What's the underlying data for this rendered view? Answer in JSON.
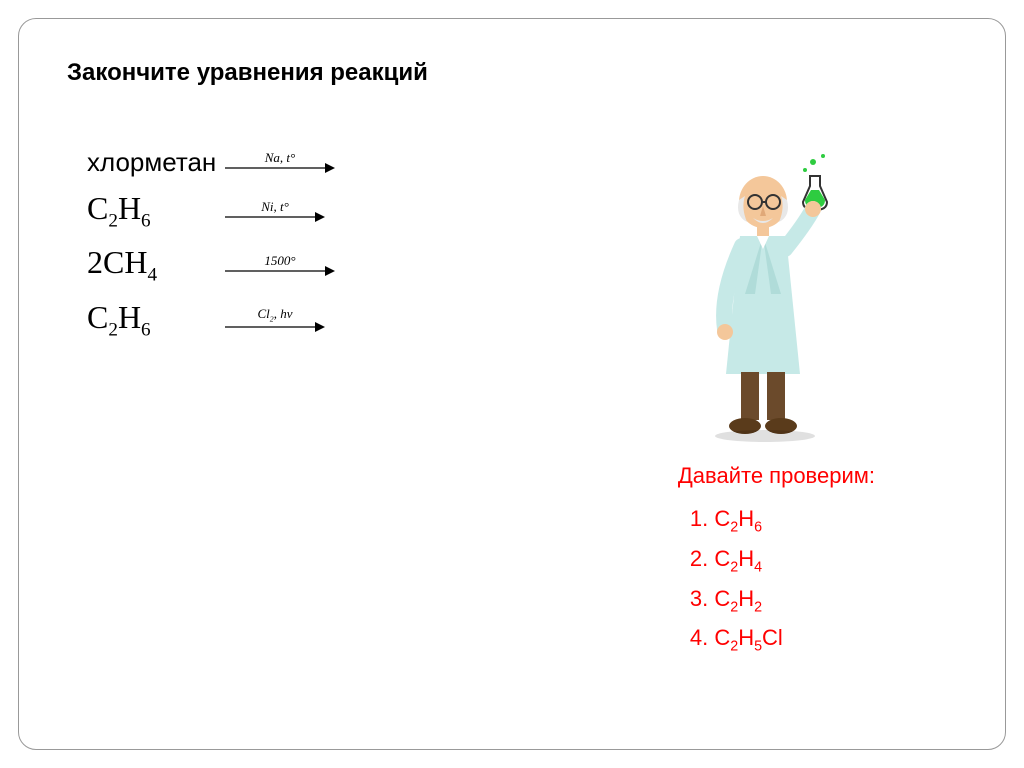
{
  "title": "Закончите уравнения реакций",
  "equations": [
    {
      "left_html": "хлорметан",
      "left_class": "chloro",
      "arrow_label_html": "Na, t°",
      "arrow_width": 110
    },
    {
      "left_html": "C<sub>2</sub>H<sub>6</sub>",
      "left_class": "",
      "arrow_label_html": "Ni, t°",
      "arrow_width": 100
    },
    {
      "left_html": "2CH<sub>4</sub>",
      "left_class": "",
      "arrow_label_html": "1500°",
      "arrow_width": 110
    },
    {
      "left_html": "C<sub>2</sub>H<sub>6</sub>",
      "left_class": "",
      "arrow_label_html": "Cl<sub>2</sub>, hν",
      "arrow_width": 100
    }
  ],
  "answers_prompt": "Давайте проверим:",
  "answers": [
    "C<sub>2</sub>H<sub>6</sub>",
    "C<sub>2</sub>H<sub>4</sub>",
    "C<sub>2</sub>H<sub>2</sub>",
    "C<sub>2</sub>H<sub>5</sub>Cl"
  ],
  "colors": {
    "text": "#000000",
    "answer": "#ff0000",
    "border": "#999999",
    "bg": "#ffffff",
    "coat": "#c6e9e7",
    "skin": "#f4c79a",
    "shoe": "#5a3b1b",
    "flask_liquid": "#2ecc40",
    "hair": "#e8e8e8"
  },
  "scientist_svg_colors": {
    "coat": "#c6e9e7",
    "skin": "#f4c79a",
    "shoe": "#5a3b1b",
    "flask": "#2ecc40",
    "hair": "#e8e8e8",
    "glasses": "#333333"
  }
}
